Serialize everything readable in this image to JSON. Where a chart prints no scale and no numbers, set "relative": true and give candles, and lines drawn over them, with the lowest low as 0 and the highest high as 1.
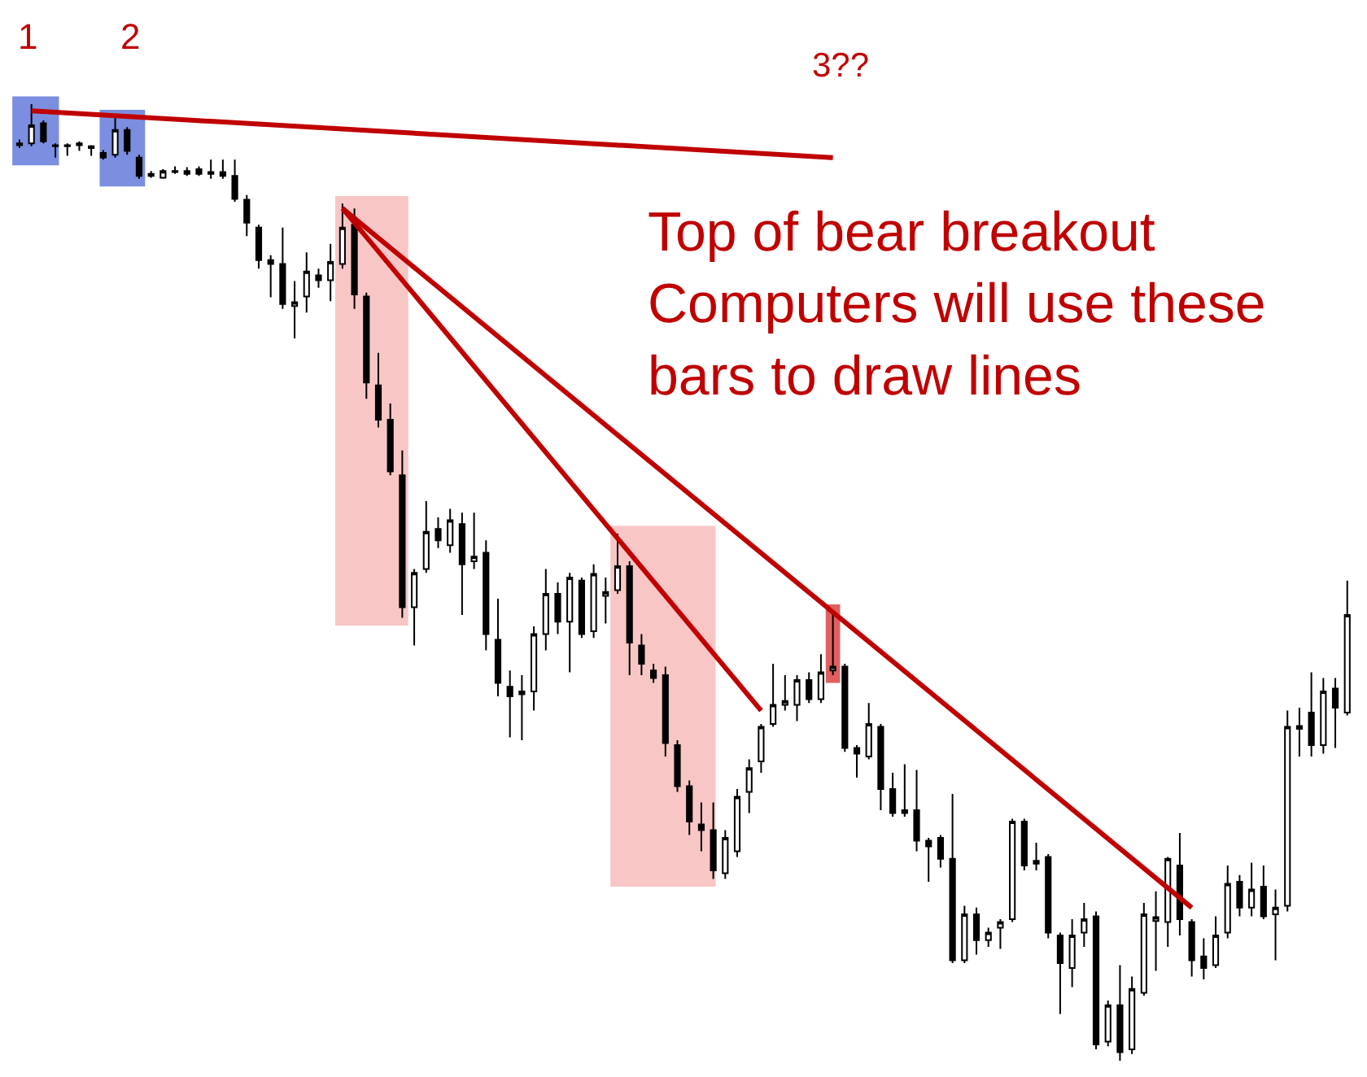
{
  "chart_data": {
    "type": "candlestick",
    "relative": true,
    "categories": [
      null,
      null,
      null,
      null,
      null,
      null,
      null,
      null,
      null,
      null,
      null,
      null,
      null,
      null,
      null,
      null,
      null,
      null,
      null,
      null,
      null,
      null,
      null,
      null,
      null,
      null,
      null,
      null,
      null,
      null,
      null,
      null,
      null,
      null,
      null,
      null,
      null,
      null,
      null,
      null,
      null,
      null,
      null,
      null,
      null,
      null,
      null,
      null,
      null,
      null,
      null,
      null,
      null,
      null,
      null,
      null,
      null,
      null,
      null,
      null,
      null,
      null,
      null,
      null,
      null,
      null,
      null,
      null,
      null,
      null,
      null,
      null,
      null,
      null,
      null,
      null,
      null,
      null,
      null,
      null,
      null,
      null,
      null,
      null,
      null,
      null,
      null,
      null,
      null,
      null,
      null,
      null,
      null,
      null,
      null,
      null,
      null,
      null,
      null,
      null,
      null,
      null,
      null,
      null,
      null,
      null,
      null,
      null,
      null,
      null,
      null,
      null
    ],
    "ohlc": [
      [
        0.957,
        0.963,
        0.954,
        0.959
      ],
      [
        0.959,
        1,
        0.956,
        0.978
      ],
      [
        0.98,
        0.983,
        0.959,
        0.961
      ],
      [
        0.957,
        0.959,
        0.944,
        0.956
      ],
      [
        0.956,
        0.959,
        0.946,
        0.957
      ],
      [
        0.957,
        0.961,
        0.951,
        0.959
      ],
      [
        0.956,
        0.957,
        0.946,
        0.954
      ],
      [
        0.949,
        0.952,
        0.942,
        0.944
      ],
      [
        0.947,
        0.986,
        0.944,
        0.973
      ],
      [
        0.973,
        0.976,
        0.947,
        0.951
      ],
      [
        0.944,
        0.947,
        0.922,
        0.925
      ],
      [
        0.927,
        0.93,
        0.923,
        0.925
      ],
      [
        0.923,
        0.932,
        0.922,
        0.93
      ],
      [
        0.929,
        0.935,
        0.927,
        0.93
      ],
      [
        0.93,
        0.934,
        0.925,
        0.927
      ],
      [
        0.932,
        0.935,
        0.925,
        0.927
      ],
      [
        0.929,
        0.942,
        0.922,
        0.927
      ],
      [
        0.929,
        0.942,
        0.922,
        0.925
      ],
      [
        0.925,
        0.942,
        0.898,
        0.901
      ],
      [
        0.9,
        0.905,
        0.862,
        0.876
      ],
      [
        0.871,
        0.874,
        0.828,
        0.837
      ],
      [
        0.837,
        0.842,
        0.798,
        0.833
      ],
      [
        0.833,
        0.871,
        0.786,
        0.791
      ],
      [
        0.789,
        0.815,
        0.755,
        0.793
      ],
      [
        0.799,
        0.845,
        0.782,
        0.825
      ],
      [
        0.821,
        0.828,
        0.808,
        0.816
      ],
      [
        0.816,
        0.854,
        0.794,
        0.835
      ],
      [
        0.833,
        0.896,
        0.828,
        0.871
      ],
      [
        0.874,
        0.891,
        0.786,
        0.801
      ],
      [
        0.799,
        0.803,
        0.692,
        0.709
      ],
      [
        0.706,
        0.74,
        0.662,
        0.67
      ],
      [
        0.67,
        0.687,
        0.612,
        0.616
      ],
      [
        0.612,
        0.638,
        0.463,
        0.474
      ],
      [
        0.474,
        0.514,
        0.434,
        0.51
      ],
      [
        0.514,
        0.585,
        0.51,
        0.553
      ],
      [
        0.556,
        0.568,
        0.536,
        0.544
      ],
      [
        0.539,
        0.577,
        0.531,
        0.565
      ],
      [
        0.561,
        0.573,
        0.466,
        0.519
      ],
      [
        0.522,
        0.573,
        0.514,
        0.527
      ],
      [
        0.531,
        0.544,
        0.429,
        0.446
      ],
      [
        0.44,
        0.483,
        0.381,
        0.395
      ],
      [
        0.391,
        0.408,
        0.338,
        0.381
      ],
      [
        0.383,
        0.403,
        0.335,
        0.386
      ],
      [
        0.386,
        0.454,
        0.366,
        0.446
      ],
      [
        0.446,
        0.514,
        0.429,
        0.488
      ],
      [
        0.488,
        0.5,
        0.446,
        0.459
      ],
      [
        0.459,
        0.51,
        0.406,
        0.505
      ],
      [
        0.502,
        0.505,
        0.442,
        0.446
      ],
      [
        0.449,
        0.519,
        0.442,
        0.509
      ],
      [
        0.486,
        0.505,
        0.457,
        0.49
      ],
      [
        0.492,
        0.551,
        0.488,
        0.517
      ],
      [
        0.517,
        0.522,
        0.403,
        0.437
      ],
      [
        0.434,
        0.446,
        0.403,
        0.415
      ],
      [
        0.408,
        0.415,
        0.395,
        0.4
      ],
      [
        0.403,
        0.412,
        0.318,
        0.332
      ],
      [
        0.33,
        0.335,
        0.281,
        0.287
      ],
      [
        0.287,
        0.293,
        0.236,
        0.25
      ],
      [
        0.247,
        0.27,
        0.219,
        0.241
      ],
      [
        0.241,
        0.27,
        0.19,
        0.199
      ],
      [
        0.196,
        0.241,
        0.19,
        0.233
      ],
      [
        0.219,
        0.284,
        0.213,
        0.276
      ],
      [
        0.281,
        0.315,
        0.259,
        0.306
      ],
      [
        0.313,
        0.352,
        0.301,
        0.349
      ],
      [
        0.352,
        0.415,
        0.349,
        0.372
      ],
      [
        0.372,
        0.403,
        0.366,
        0.376
      ],
      [
        0.372,
        0.403,
        0.355,
        0.398
      ],
      [
        0.398,
        0.406,
        0.374,
        0.378
      ],
      [
        0.378,
        0.425,
        0.374,
        0.406
      ],
      [
        0.408,
        0.469,
        0.403,
        0.412
      ],
      [
        0.412,
        0.415,
        0.323,
        0.327
      ],
      [
        0.327,
        0.33,
        0.296,
        0.321
      ],
      [
        0.318,
        0.374,
        0.315,
        0.352
      ],
      [
        0.349,
        0.352,
        0.262,
        0.284
      ],
      [
        0.284,
        0.301,
        0.255,
        0.259
      ],
      [
        0.262,
        0.31,
        0.255,
        0.259
      ],
      [
        0.262,
        0.304,
        0.219,
        0.23
      ],
      [
        0.23,
        0.233,
        0.187,
        0.224
      ],
      [
        0.233,
        0.236,
        0.202,
        0.211
      ],
      [
        0.211,
        0.279,
        0.102,
        0.105
      ],
      [
        0.105,
        0.162,
        0.102,
        0.153
      ],
      [
        0.153,
        0.16,
        0.111,
        0.126
      ],
      [
        0.126,
        0.139,
        0.119,
        0.134
      ],
      [
        0.139,
        0.148,
        0.117,
        0.145
      ],
      [
        0.148,
        0.253,
        0.145,
        0.25
      ],
      [
        0.25,
        0.253,
        0.199,
        0.204
      ],
      [
        0.209,
        0.228,
        0.199,
        0.206
      ],
      [
        0.213,
        0.216,
        0.128,
        0.134
      ],
      [
        0.131,
        0.134,
        0.049,
        0.102
      ],
      [
        0.097,
        0.148,
        0.077,
        0.131
      ],
      [
        0.134,
        0.165,
        0.119,
        0.148
      ],
      [
        0.151,
        0.156,
        0.012,
        0.017
      ],
      [
        0.02,
        0.063,
        0.015,
        0.058
      ],
      [
        0.058,
        0.1,
        0,
        0.009
      ],
      [
        0.012,
        0.088,
        0.007,
        0.075
      ],
      [
        0.071,
        0.165,
        0.068,
        0.153
      ],
      [
        0.146,
        0.177,
        0.094,
        0.15
      ],
      [
        0.145,
        0.213,
        0.119,
        0.211
      ],
      [
        0.204,
        0.238,
        0.131,
        0.148
      ],
      [
        0.145,
        0.148,
        0.088,
        0.105
      ],
      [
        0.109,
        0.128,
        0.085,
        0.097
      ],
      [
        0.1,
        0.151,
        0.097,
        0.131
      ],
      [
        0.134,
        0.204,
        0.128,
        0.185
      ],
      [
        0.187,
        0.194,
        0.151,
        0.16
      ],
      [
        0.16,
        0.207,
        0.151,
        0.179
      ],
      [
        0.182,
        0.204,
        0.148,
        0.151
      ],
      [
        0.153,
        0.179,
        0.105,
        0.16
      ],
      [
        0.162,
        0.366,
        0.156,
        0.349
      ],
      [
        0.347,
        0.369,
        0.318,
        0.35
      ],
      [
        0.364,
        0.406,
        0.318,
        0.33
      ],
      [
        0.33,
        0.4,
        0.321,
        0.386
      ],
      [
        0.389,
        0.4,
        0.327,
        0.369
      ],
      [
        0.364,
        0.502,
        0.361,
        0.466
      ]
    ],
    "series": [
      {
        "type": "line",
        "color": "#c00000",
        "values": [
          null,
          0.993,
          null,
          null,
          null,
          null,
          null,
          null,
          null,
          null,
          null,
          null,
          null,
          null,
          null,
          null,
          null,
          null,
          null,
          null,
          null,
          null,
          null,
          null,
          null,
          null,
          null,
          null,
          null,
          null,
          null,
          null,
          null,
          null,
          null,
          null,
          null,
          null,
          null,
          null,
          null,
          null,
          null,
          null,
          null,
          null,
          null,
          null,
          null,
          null,
          null,
          null,
          null,
          null,
          null,
          null,
          null,
          null,
          null,
          null,
          null,
          null,
          null,
          null,
          null,
          null,
          null,
          null,
          0.944,
          null,
          null,
          null,
          null,
          null,
          null,
          null,
          null,
          null,
          null,
          null,
          null,
          null,
          null,
          null,
          null,
          null,
          null,
          null,
          null,
          null,
          null,
          null,
          null,
          null,
          null,
          null,
          null,
          null,
          null,
          null,
          null,
          null,
          null,
          null,
          null,
          null,
          null,
          null,
          null,
          null,
          null,
          null
        ]
      },
      {
        "type": "line",
        "color": "#c00000",
        "values": [
          null,
          null,
          null,
          null,
          null,
          null,
          null,
          null,
          null,
          null,
          null,
          null,
          null,
          null,
          null,
          null,
          null,
          null,
          null,
          null,
          null,
          null,
          null,
          null,
          null,
          null,
          null,
          0.891,
          null,
          null,
          null,
          null,
          null,
          null,
          null,
          null,
          null,
          null,
          null,
          null,
          null,
          null,
          null,
          null,
          null,
          null,
          null,
          null,
          null,
          null,
          null,
          null,
          null,
          null,
          null,
          null,
          null,
          null,
          null,
          null,
          null,
          null,
          0.366,
          null,
          null,
          null,
          null,
          null,
          null,
          null,
          null,
          null,
          null,
          null,
          null,
          null,
          null,
          null,
          null,
          null,
          null,
          null,
          null,
          null,
          null,
          null,
          null,
          null,
          null,
          null,
          null,
          null,
          null,
          null,
          null,
          null,
          null,
          null,
          null,
          null,
          null,
          null,
          null,
          null,
          null,
          null,
          null,
          null,
          null,
          null,
          null,
          null
        ]
      },
      {
        "type": "line",
        "color": "#c00000",
        "values": [
          null,
          null,
          null,
          null,
          null,
          null,
          null,
          null,
          null,
          null,
          null,
          null,
          null,
          null,
          null,
          null,
          null,
          null,
          null,
          null,
          null,
          null,
          null,
          null,
          null,
          null,
          null,
          0.891,
          null,
          null,
          null,
          null,
          null,
          null,
          null,
          null,
          null,
          null,
          null,
          null,
          null,
          null,
          null,
          null,
          null,
          null,
          null,
          null,
          null,
          null,
          null,
          null,
          null,
          null,
          null,
          null,
          null,
          null,
          null,
          null,
          null,
          null,
          null,
          null,
          null,
          null,
          null,
          null,
          null,
          null,
          null,
          null,
          null,
          null,
          null,
          null,
          null,
          null,
          null,
          null,
          null,
          null,
          null,
          null,
          null,
          null,
          null,
          null,
          null,
          null,
          null,
          null,
          null,
          null,
          null,
          null,
          null,
          null,
          0.16,
          null,
          null,
          null,
          null,
          null,
          null,
          null,
          null,
          null,
          null,
          null,
          null,
          null
        ]
      }
    ],
    "annotations": [
      "1",
      "2",
      "3??",
      "Top of bear breakout\nComputers will use these\nbars to draw lines"
    ]
  }
}
